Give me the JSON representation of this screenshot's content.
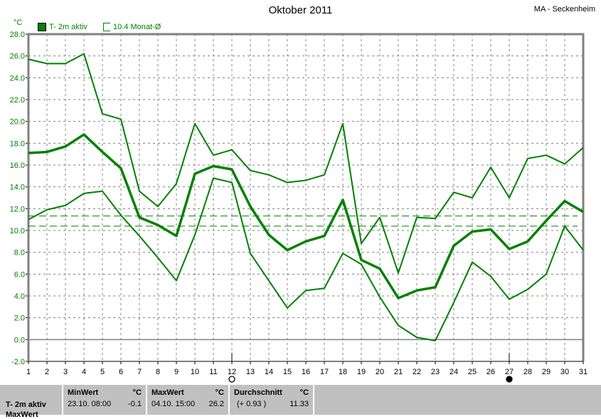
{
  "title": "Oktober 2011",
  "station": "MA - Seckenheim",
  "unit": "°C",
  "legend": {
    "series": "T- 2m aktiv",
    "monthly": "10.4 Monat-Ø"
  },
  "colors": {
    "line": "#008000",
    "grid": "#808080",
    "panel": "#c0c0c0"
  },
  "moon": {
    "full_day": 12,
    "new_day": 27
  },
  "chart_data": {
    "type": "line",
    "title": "Oktober 2011",
    "ylabel": "°C",
    "x": [
      1,
      2,
      3,
      4,
      5,
      6,
      7,
      8,
      9,
      10,
      11,
      12,
      13,
      14,
      15,
      16,
      17,
      18,
      19,
      20,
      21,
      22,
      23,
      24,
      25,
      26,
      27,
      28,
      29,
      30,
      31
    ],
    "ylim": [
      -2,
      28
    ],
    "yticks": [
      "28.0",
      "26.0",
      "24.0",
      "22.0",
      "20.0",
      "18.0",
      "16.0",
      "14.0",
      "12.0",
      "10.0",
      "8.0",
      "6.0",
      "4.0",
      "2.0",
      "0.0",
      "-2.0"
    ],
    "grid": true,
    "legend_position": "top-left",
    "series": [
      {
        "role": "max",
        "values": [
          25.7,
          25.3,
          25.3,
          26.2,
          20.7,
          20.2,
          13.6,
          12.2,
          14.3,
          19.8,
          16.9,
          17.4,
          15.5,
          15.1,
          14.4,
          14.6,
          15.1,
          19.8,
          8.8,
          11.2,
          6.1,
          11.2,
          11.1,
          13.5,
          13.0,
          15.8,
          13.0,
          16.6,
          16.9,
          16.1,
          17.6
        ]
      },
      {
        "role": "mean",
        "name": "T- 2m aktiv",
        "values": [
          17.1,
          17.2,
          17.7,
          18.8,
          17.2,
          15.7,
          11.2,
          10.5,
          9.5,
          15.2,
          15.9,
          15.6,
          12.2,
          9.6,
          8.2,
          9.0,
          9.5,
          12.8,
          7.3,
          6.5,
          3.8,
          4.5,
          4.8,
          8.6,
          9.9,
          10.1,
          8.3,
          9.0,
          10.9,
          12.7,
          11.7
        ]
      },
      {
        "role": "min",
        "values": [
          11.0,
          11.9,
          12.3,
          13.4,
          13.6,
          11.4,
          9.5,
          7.5,
          5.4,
          9.6,
          14.8,
          14.4,
          7.9,
          5.4,
          2.9,
          4.5,
          4.7,
          7.9,
          6.9,
          3.9,
          1.3,
          0.2,
          -0.1,
          3.4,
          7.1,
          5.8,
          3.7,
          4.6,
          6.0,
          10.4,
          8.2
        ]
      }
    ],
    "reference_lines": [
      {
        "name": "10.4 Monat-Ø",
        "value": 10.4
      },
      {
        "value": 11.33
      }
    ]
  },
  "stats": {
    "row_label": "T- 2m aktiv",
    "row2_label": "MaxWert",
    "min": {
      "label": "MinWert",
      "unit": "°C",
      "date": "23.10.  08:00",
      "value": "-0.1"
    },
    "max": {
      "label": "MaxWert",
      "unit": "°C",
      "date": "04.10.  15:00",
      "value": "26.2"
    },
    "avg": {
      "label": "Durchschnitt",
      "unit": "°C",
      "diff": "(+ 0.93 )",
      "value": "11.33"
    }
  }
}
